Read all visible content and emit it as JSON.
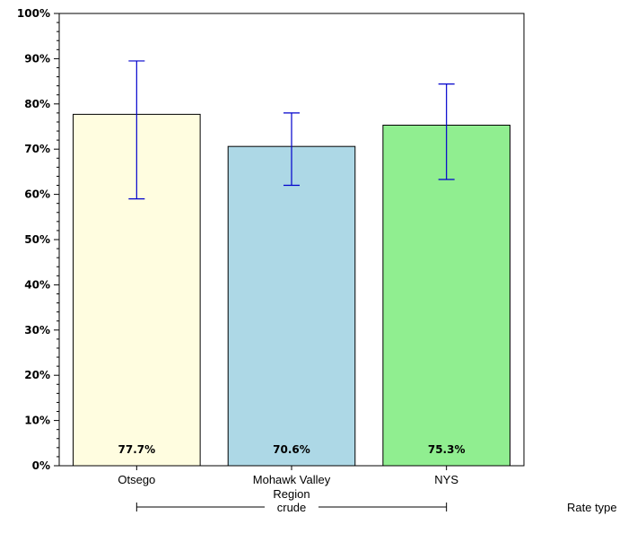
{
  "chart_data": {
    "type": "bar",
    "categories": [
      [
        "Otsego"
      ],
      [
        "Mohawk Valley",
        "Region"
      ],
      [
        "NYS"
      ]
    ],
    "values": [
      77.7,
      70.6,
      75.3
    ],
    "data_labels": [
      "77.7%",
      "70.6%",
      "75.3%"
    ],
    "error_bars": [
      {
        "lower": 59.0,
        "upper": 89.5
      },
      {
        "lower": 62.0,
        "upper": 78.0
      },
      {
        "lower": 63.3,
        "upper": 84.4
      }
    ],
    "bar_colors": [
      "#fffde0",
      "#add8e6",
      "#90ee90"
    ],
    "error_bar_color": "#0000cc",
    "ylim": [
      0,
      100
    ],
    "y_ticks": [
      0,
      10,
      20,
      30,
      40,
      50,
      60,
      70,
      80,
      90,
      100
    ],
    "y_tick_labels": [
      "0%",
      "10%",
      "20%",
      "30%",
      "40%",
      "50%",
      "60%",
      "70%",
      "80%",
      "90%",
      "100%"
    ],
    "grid": false,
    "group_label": "crude",
    "group_axis_title": "Rate type"
  }
}
